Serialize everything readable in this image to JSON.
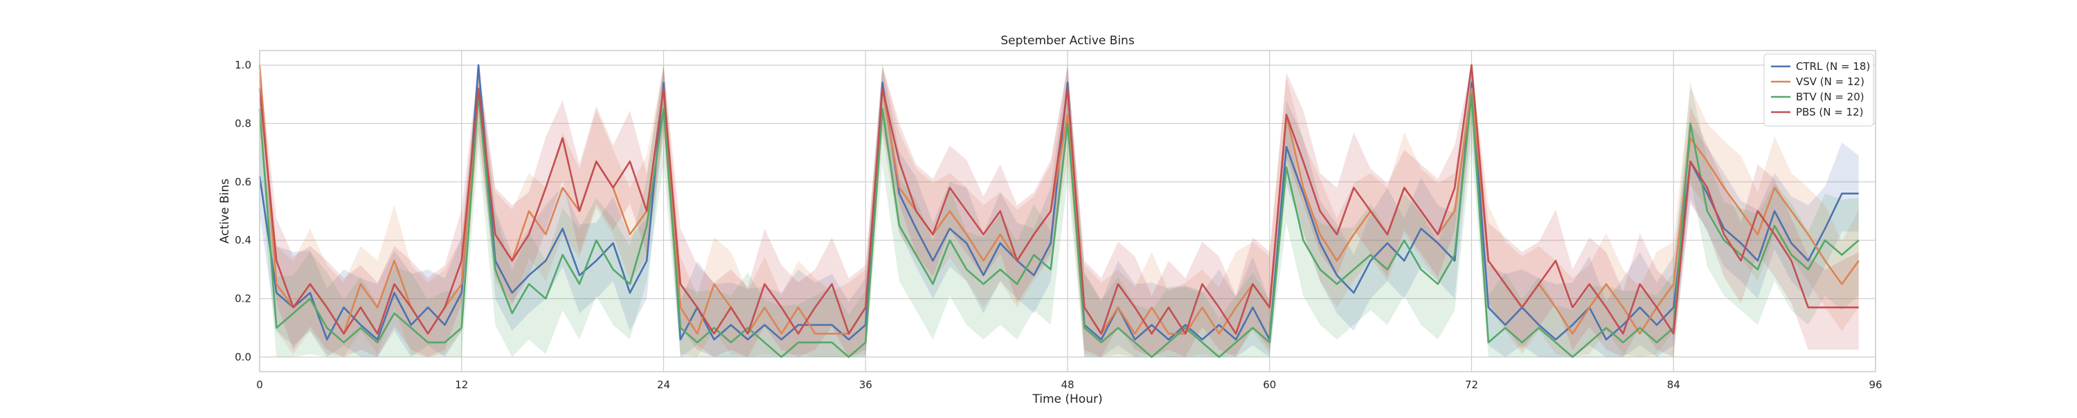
{
  "chart_data": {
    "type": "line",
    "title": "September Active Bins",
    "xlabel": "Time (Hour)",
    "ylabel": "Active Bins",
    "xlim": [
      0,
      96
    ],
    "ylim": [
      -0.05,
      1.05
    ],
    "x_ticks": [
      0,
      12,
      24,
      36,
      48,
      60,
      72,
      84,
      96
    ],
    "y_ticks": [
      0.0,
      0.2,
      0.4,
      0.6,
      0.8,
      1.0
    ],
    "x_tick_labels": [
      "0",
      "12",
      "24",
      "36",
      "48",
      "60",
      "72",
      "84",
      "96"
    ],
    "y_tick_labels": [
      "0.0",
      "0.2",
      "0.4",
      "0.6",
      "0.8",
      "1.0"
    ],
    "grid": true,
    "legend_position": "top-right",
    "x": [
      0,
      1,
      2,
      3,
      4,
      5,
      6,
      7,
      8,
      9,
      10,
      11,
      12,
      13,
      14,
      15,
      16,
      17,
      18,
      19,
      20,
      21,
      22,
      23,
      24,
      25,
      26,
      27,
      28,
      29,
      30,
      31,
      32,
      33,
      34,
      35,
      36,
      37,
      38,
      39,
      40,
      41,
      42,
      43,
      44,
      45,
      46,
      47,
      48,
      49,
      50,
      51,
      52,
      53,
      54,
      55,
      56,
      57,
      58,
      59,
      60,
      61,
      62,
      63,
      64,
      65,
      66,
      67,
      68,
      69,
      70,
      71,
      72,
      73,
      74,
      75,
      76,
      77,
      78,
      79,
      80,
      81,
      82,
      83,
      84,
      85,
      86,
      87,
      88,
      89,
      90,
      91,
      92,
      93,
      94,
      95
    ],
    "series": [
      {
        "name": "CTRL (N = 18)",
        "color": "#4c72b0",
        "values": [
          0.62,
          0.22,
          0.17,
          0.22,
          0.06,
          0.17,
          0.11,
          0.06,
          0.22,
          0.11,
          0.17,
          0.11,
          0.22,
          1.0,
          0.33,
          0.22,
          0.28,
          0.33,
          0.44,
          0.28,
          0.33,
          0.39,
          0.22,
          0.33,
          0.94,
          0.06,
          0.17,
          0.06,
          0.11,
          0.06,
          0.11,
          0.06,
          0.11,
          0.11,
          0.11,
          0.06,
          0.11,
          0.94,
          0.56,
          0.44,
          0.33,
          0.44,
          0.39,
          0.28,
          0.39,
          0.33,
          0.28,
          0.39,
          0.94,
          0.11,
          0.06,
          0.17,
          0.06,
          0.11,
          0.06,
          0.11,
          0.06,
          0.11,
          0.06,
          0.17,
          0.06,
          0.72,
          0.56,
          0.39,
          0.28,
          0.22,
          0.33,
          0.39,
          0.33,
          0.44,
          0.39,
          0.33,
          0.94,
          0.17,
          0.11,
          0.17,
          0.11,
          0.06,
          0.11,
          0.17,
          0.06,
          0.11,
          0.17,
          0.11,
          0.17,
          0.67,
          0.56,
          0.44,
          0.39,
          0.33,
          0.5,
          0.39,
          0.33,
          0.44,
          0.56,
          0.56
        ]
      },
      {
        "name": "VSV (N = 12)",
        "color": "#dd8452",
        "values": [
          1.0,
          0.25,
          0.17,
          0.25,
          0.17,
          0.08,
          0.25,
          0.17,
          0.33,
          0.17,
          0.08,
          0.17,
          0.25,
          0.92,
          0.42,
          0.33,
          0.5,
          0.42,
          0.58,
          0.5,
          0.67,
          0.58,
          0.42,
          0.5,
          0.92,
          0.17,
          0.08,
          0.25,
          0.17,
          0.08,
          0.17,
          0.08,
          0.17,
          0.08,
          0.08,
          0.08,
          0.17,
          0.92,
          0.58,
          0.5,
          0.42,
          0.5,
          0.42,
          0.33,
          0.42,
          0.33,
          0.42,
          0.5,
          0.83,
          0.17,
          0.08,
          0.17,
          0.08,
          0.17,
          0.08,
          0.08,
          0.17,
          0.08,
          0.17,
          0.25,
          0.17,
          0.83,
          0.58,
          0.42,
          0.33,
          0.42,
          0.5,
          0.42,
          0.58,
          0.5,
          0.42,
          0.5,
          0.92,
          0.33,
          0.25,
          0.17,
          0.25,
          0.17,
          0.08,
          0.17,
          0.25,
          0.17,
          0.08,
          0.17,
          0.25,
          0.75,
          0.67,
          0.58,
          0.5,
          0.42,
          0.58,
          0.5,
          0.42,
          0.33,
          0.25,
          0.33
        ]
      },
      {
        "name": "BTV (N = 20)",
        "color": "#55a868",
        "values": [
          0.85,
          0.1,
          0.15,
          0.2,
          0.1,
          0.05,
          0.1,
          0.05,
          0.15,
          0.1,
          0.05,
          0.05,
          0.1,
          0.9,
          0.3,
          0.15,
          0.25,
          0.2,
          0.35,
          0.25,
          0.4,
          0.3,
          0.25,
          0.45,
          0.85,
          0.1,
          0.05,
          0.1,
          0.05,
          0.1,
          0.05,
          0.0,
          0.05,
          0.05,
          0.05,
          0.0,
          0.05,
          0.85,
          0.45,
          0.35,
          0.25,
          0.4,
          0.3,
          0.25,
          0.3,
          0.25,
          0.35,
          0.3,
          0.8,
          0.1,
          0.05,
          0.1,
          0.05,
          0.0,
          0.05,
          0.1,
          0.05,
          0.0,
          0.05,
          0.1,
          0.05,
          0.65,
          0.4,
          0.3,
          0.25,
          0.3,
          0.35,
          0.3,
          0.4,
          0.3,
          0.25,
          0.35,
          0.9,
          0.05,
          0.1,
          0.05,
          0.1,
          0.05,
          0.0,
          0.05,
          0.1,
          0.05,
          0.1,
          0.05,
          0.1,
          0.8,
          0.5,
          0.4,
          0.35,
          0.3,
          0.45,
          0.35,
          0.3,
          0.4,
          0.35,
          0.4
        ]
      },
      {
        "name": "PBS (N = 12)",
        "color": "#c44e52",
        "values": [
          0.92,
          0.33,
          0.17,
          0.25,
          0.17,
          0.08,
          0.17,
          0.08,
          0.25,
          0.17,
          0.08,
          0.17,
          0.33,
          0.92,
          0.42,
          0.33,
          0.42,
          0.58,
          0.75,
          0.5,
          0.67,
          0.58,
          0.67,
          0.5,
          0.92,
          0.25,
          0.17,
          0.08,
          0.17,
          0.08,
          0.25,
          0.17,
          0.08,
          0.17,
          0.25,
          0.08,
          0.17,
          0.92,
          0.67,
          0.5,
          0.42,
          0.58,
          0.5,
          0.42,
          0.5,
          0.33,
          0.42,
          0.5,
          0.92,
          0.17,
          0.08,
          0.25,
          0.17,
          0.08,
          0.17,
          0.08,
          0.25,
          0.17,
          0.08,
          0.25,
          0.17,
          0.83,
          0.67,
          0.5,
          0.42,
          0.58,
          0.5,
          0.42,
          0.58,
          0.5,
          0.42,
          0.58,
          1.0,
          0.33,
          0.25,
          0.17,
          0.25,
          0.33,
          0.17,
          0.25,
          0.17,
          0.08,
          0.25,
          0.17,
          0.08,
          0.67,
          0.58,
          0.42,
          0.33,
          0.5,
          0.42,
          0.33,
          0.17,
          0.17,
          0.17,
          0.17
        ]
      }
    ]
  }
}
